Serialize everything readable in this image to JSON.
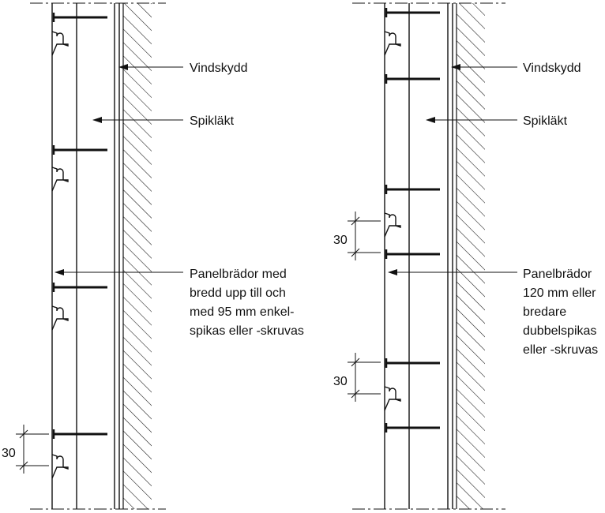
{
  "left_detail": {
    "labels": {
      "vindskydd": "Vindskydd",
      "spiklakt": "Spikläkt",
      "panel_lines": [
        "Panelbrädor med",
        "bredd upp till och",
        "med 95 mm enkel-",
        "spikas eller -skruvas"
      ]
    },
    "dimension": "30"
  },
  "right_detail": {
    "labels": {
      "vindskydd": "Vindskydd",
      "spiklakt": "Spikläkt",
      "panel_lines": [
        "Panelbrädor",
        "120 mm eller",
        "bredare",
        "dubbelspikas",
        "eller -skruvas"
      ]
    },
    "dimensions": [
      "30",
      "30"
    ]
  }
}
